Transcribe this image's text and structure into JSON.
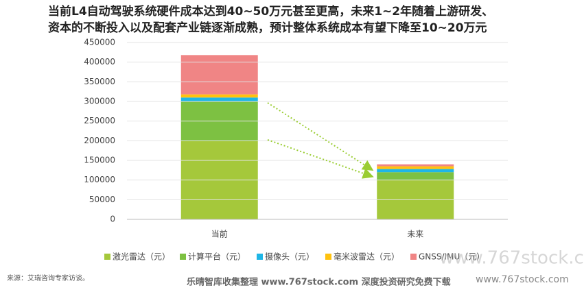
{
  "chart_data": {
    "type": "stacked-bar",
    "title": [
      "当前L4自动驾驶系统硬件成本达到40~50万元甚至更高，未来1~2年随着上游研发、",
      "资本的不断投入以及配套产业链逐渐成熟，预计整体系统成本有望下降至10~20万元"
    ],
    "categories": [
      "当前",
      "未来"
    ],
    "series": [
      {
        "name": "激光雷达（元）",
        "color": "#a5c83b",
        "values": [
          200000,
          100000
        ]
      },
      {
        "name": "计算平台（元）",
        "color": "#7dc142",
        "values": [
          100000,
          20000
        ]
      },
      {
        "name": "摄像头（元）",
        "color": "#1fb6e6",
        "values": [
          10000,
          8000
        ]
      },
      {
        "name": "毫米波雷达（元）",
        "color": "#ffc20e",
        "values": [
          8000,
          7000
        ]
      },
      {
        "name": "GNSS/IMU（元）",
        "color": "#f08585",
        "values": [
          100000,
          5000
        ]
      }
    ],
    "ylim": [
      0,
      450000
    ],
    "yticks": [
      0,
      50000,
      100000,
      150000,
      200000,
      250000,
      300000,
      350000,
      400000,
      450000
    ],
    "grid": true
  },
  "source": "来源：艾瑞咨询专家访谈。",
  "footer": "乐晴智库收集整理 www.767stock.com 深度投资研究免费下载",
  "watermarks": [
    "www.767stock.c",
    "www.767stock.com"
  ]
}
